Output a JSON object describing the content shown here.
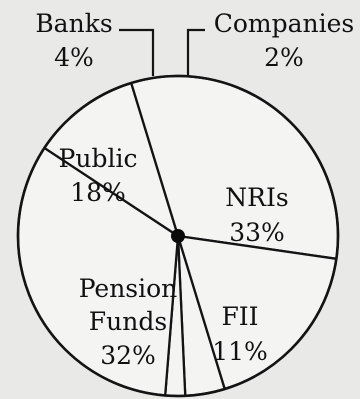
{
  "chart_data": {
    "type": "pie",
    "title": "",
    "slices": [
      {
        "name": "Banks",
        "value": 4,
        "label": "4%"
      },
      {
        "name": "Companies",
        "value": 2,
        "label": "2%"
      },
      {
        "name": "NRIs",
        "value": 33,
        "label": "33%"
      },
      {
        "name": "FII",
        "value": 11,
        "label": "11%"
      },
      {
        "name": "Pension Funds",
        "value": 32,
        "label": "32%"
      },
      {
        "name": "Public",
        "value": 18,
        "label": "18%"
      }
    ]
  }
}
